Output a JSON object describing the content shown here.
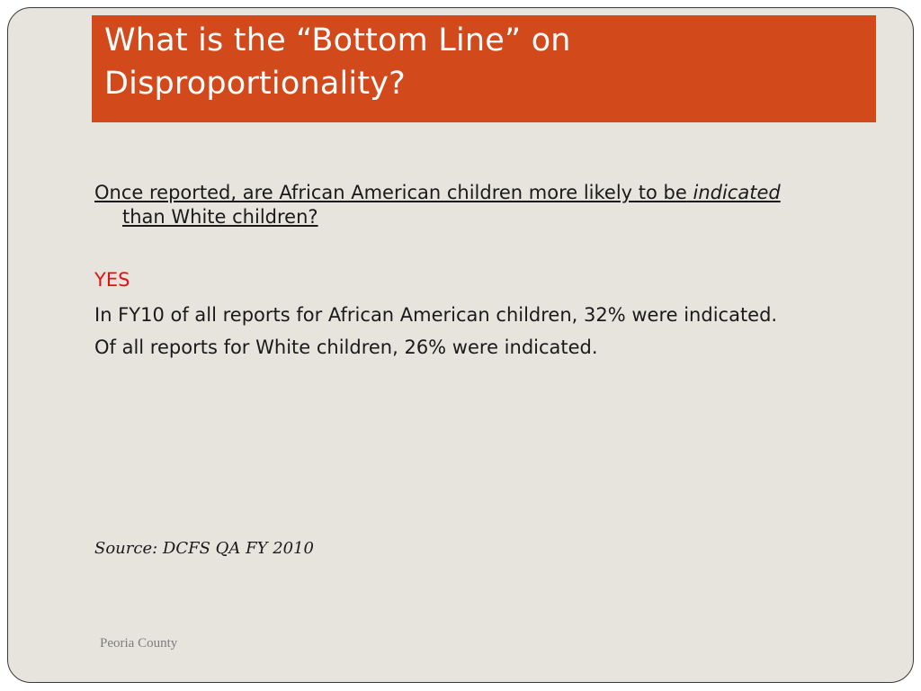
{
  "slide": {
    "title_line1": "What is the “Bottom Line” on",
    "title_line2": "Disproportionality?",
    "question_part1": "Once reported, are African American children more likely to be",
    "question_emphasis": "indicated",
    "question_part2": " than White children?",
    "answer": "YES",
    "stat_african_american": "In FY10 of all reports for African American children, 32% were indicated.",
    "stat_white": "Of all reports for White children, 26% were indicated.",
    "source": "Source: DCFS QA FY 2010",
    "footer": "Peoria County"
  },
  "colors": {
    "title_bar": "#d24a1c",
    "background": "#e7e4de",
    "answer_text": "#e31212"
  }
}
